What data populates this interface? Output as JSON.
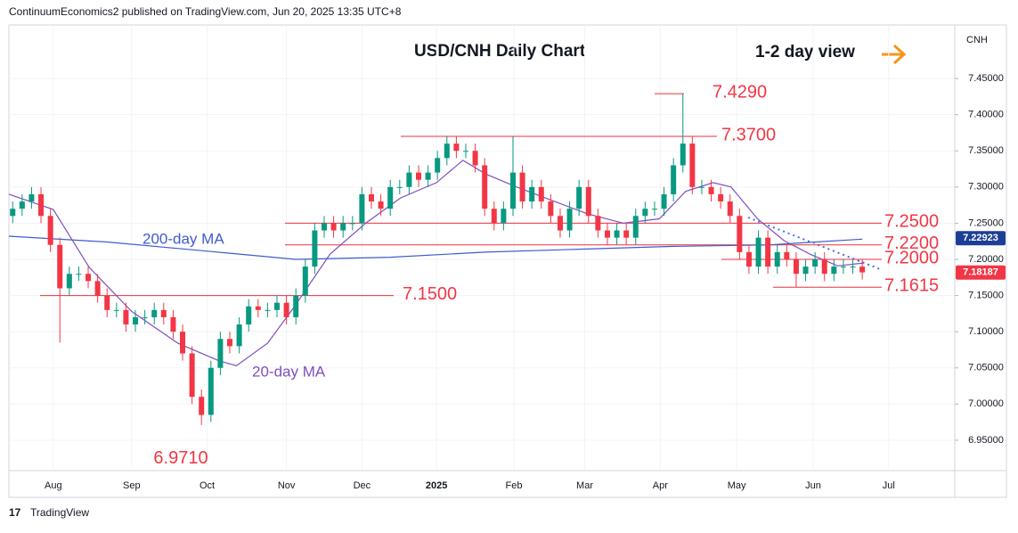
{
  "header": "ContinuumEconomics2 published on TradingView.com, Jun 20, 2025 13:35 UTC+8",
  "footer": "TradingView",
  "chart_data": {
    "type": "candlestick",
    "title": "USD/CNH Daily Chart",
    "subtitle": "1-2 day view",
    "currency": "CNH",
    "up_color": "#089981",
    "down_color": "#f23645",
    "open": [
      7.26,
      7.27,
      7.28,
      7.29,
      7.26,
      7.22,
      7.16,
      7.18,
      7.18,
      7.17,
      7.15,
      7.13,
      7.13,
      7.11,
      7.12,
      7.12,
      7.13,
      7.12,
      7.1,
      7.07,
      7.01,
      6.985,
      7.05,
      7.09,
      7.08,
      7.11,
      7.135,
      7.13,
      7.13,
      7.14,
      7.12,
      7.15,
      7.19,
      7.24,
      7.25,
      7.24,
      7.25,
      7.25,
      7.29,
      7.28,
      7.27,
      7.3,
      7.3,
      7.32,
      7.31,
      7.32,
      7.34,
      7.36,
      7.35,
      7.35,
      7.33,
      7.27,
      7.25,
      7.27,
      7.32,
      7.28,
      7.3,
      7.28,
      7.26,
      7.24,
      7.27,
      7.3,
      7.26,
      7.24,
      7.23,
      7.24,
      7.23,
      7.26,
      7.27,
      7.27,
      7.29,
      7.33,
      7.36,
      7.3,
      7.3,
      7.29,
      7.28,
      7.26,
      7.21,
      7.19,
      7.23,
      7.19,
      7.21,
      7.2,
      7.18,
      7.19,
      7.2,
      7.18,
      7.19,
      7.19,
      7.19
    ],
    "high": [
      7.28,
      7.29,
      7.3,
      7.3,
      7.27,
      7.23,
      7.19,
      7.19,
      7.19,
      7.18,
      7.16,
      7.14,
      7.14,
      7.13,
      7.13,
      7.14,
      7.14,
      7.13,
      7.11,
      7.08,
      7.02,
      7.06,
      7.1,
      7.1,
      7.12,
      7.145,
      7.145,
      7.14,
      7.15,
      7.15,
      7.16,
      7.2,
      7.25,
      7.26,
      7.26,
      7.26,
      7.26,
      7.3,
      7.3,
      7.29,
      7.31,
      7.31,
      7.33,
      7.33,
      7.33,
      7.35,
      7.37,
      7.37,
      7.36,
      7.36,
      7.34,
      7.28,
      7.28,
      7.37,
      7.33,
      7.31,
      7.31,
      7.29,
      7.27,
      7.28,
      7.31,
      7.31,
      7.27,
      7.25,
      7.25,
      7.25,
      7.27,
      7.28,
      7.28,
      7.3,
      7.34,
      7.429,
      7.37,
      7.31,
      7.31,
      7.3,
      7.29,
      7.27,
      7.22,
      7.24,
      7.24,
      7.22,
      7.22,
      7.21,
      7.2,
      7.21,
      7.21,
      7.2,
      7.2,
      7.2,
      7.2
    ],
    "low": [
      7.25,
      7.26,
      7.27,
      7.25,
      7.21,
      7.085,
      7.15,
      7.17,
      7.16,
      7.14,
      7.12,
      7.12,
      7.1,
      7.1,
      7.11,
      7.11,
      7.11,
      7.09,
      7.06,
      7.0,
      6.971,
      6.975,
      7.04,
      7.07,
      7.07,
      7.1,
      7.12,
      7.12,
      7.12,
      7.11,
      7.11,
      7.14,
      7.18,
      7.23,
      7.23,
      7.23,
      7.24,
      7.24,
      7.27,
      7.26,
      7.26,
      7.29,
      7.29,
      7.3,
      7.3,
      7.31,
      7.33,
      7.34,
      7.34,
      7.32,
      7.26,
      7.24,
      7.24,
      7.26,
      7.27,
      7.27,
      7.27,
      7.25,
      7.23,
      7.23,
      7.26,
      7.25,
      7.23,
      7.22,
      7.22,
      7.22,
      7.22,
      7.25,
      7.26,
      7.26,
      7.28,
      7.32,
      7.29,
      7.29,
      7.28,
      7.27,
      7.25,
      7.2,
      7.18,
      7.18,
      7.18,
      7.18,
      7.19,
      7.1615,
      7.17,
      7.18,
      7.17,
      7.17,
      7.18,
      7.18,
      7.172
    ],
    "close": [
      7.27,
      7.28,
      7.29,
      7.26,
      7.22,
      7.16,
      7.18,
      7.18,
      7.17,
      7.15,
      7.13,
      7.13,
      7.11,
      7.12,
      7.12,
      7.13,
      7.12,
      7.1,
      7.07,
      7.01,
      6.985,
      7.05,
      7.09,
      7.08,
      7.11,
      7.135,
      7.13,
      7.13,
      7.14,
      7.12,
      7.15,
      7.19,
      7.24,
      7.25,
      7.24,
      7.25,
      7.25,
      7.29,
      7.28,
      7.27,
      7.3,
      7.3,
      7.32,
      7.31,
      7.32,
      7.34,
      7.36,
      7.35,
      7.35,
      7.33,
      7.27,
      7.25,
      7.27,
      7.32,
      7.28,
      7.3,
      7.28,
      7.26,
      7.24,
      7.27,
      7.3,
      7.26,
      7.24,
      7.23,
      7.24,
      7.23,
      7.26,
      7.27,
      7.27,
      7.29,
      7.33,
      7.36,
      7.3,
      7.3,
      7.29,
      7.28,
      7.26,
      7.21,
      7.19,
      7.23,
      7.19,
      7.21,
      7.2,
      7.18,
      7.19,
      7.2,
      7.18,
      7.19,
      7.19,
      7.19,
      7.182
    ],
    "moving_averages": [
      {
        "name": "200-day MA",
        "color": "#3d5ccf",
        "x": [
          -0.4,
          10,
          20,
          30,
          40,
          50,
          60,
          70,
          80,
          90
        ],
        "values": [
          7.232,
          7.224,
          7.212,
          7.2,
          7.203,
          7.21,
          7.214,
          7.218,
          7.22,
          7.228
        ]
      },
      {
        "name": "20-day MA",
        "color": "#7e4fc0",
        "x": [
          -0.4,
          4.3,
          8.1,
          12.6,
          17.5,
          21.8,
          23.7,
          27,
          29.8,
          33.6,
          37.4,
          41.1,
          44.9,
          47.7,
          50.1,
          53.4,
          57.2,
          60.9,
          64.7,
          68.5,
          71.3,
          74.2,
          76.1,
          78.9,
          81.7,
          84.5,
          87.4,
          90.2
        ],
        "values": [
          7.29,
          7.269,
          7.189,
          7.128,
          7.084,
          7.06,
          7.053,
          7.084,
          7.134,
          7.207,
          7.25,
          7.285,
          7.306,
          7.337,
          7.318,
          7.3,
          7.281,
          7.263,
          7.25,
          7.256,
          7.294,
          7.306,
          7.3,
          7.256,
          7.226,
          7.207,
          7.191,
          7.195
        ]
      }
    ],
    "levels": [
      {
        "value": 7.429,
        "label": "7.4290"
      },
      {
        "value": 7.37,
        "label": "7.3700"
      },
      {
        "value": 7.25,
        "label": "7.2500"
      },
      {
        "value": 7.22,
        "label": "7.2200"
      },
      {
        "value": 7.2,
        "label": "7.2000"
      },
      {
        "value": 7.1615,
        "label": "7.1615"
      },
      {
        "value": 7.15,
        "label": "7.1500"
      },
      {
        "value": 6.971,
        "label": "6.9710"
      }
    ],
    "price_tags": [
      {
        "value": 7.22923,
        "label": "7.22923",
        "color": "#1c3f95"
      },
      {
        "value": 7.18187,
        "label": "7.18187",
        "color": "#f23645"
      }
    ],
    "xlim": [
      -0.4,
      99.8
    ],
    "xticks": [
      {
        "value": 4.3,
        "label": "Aug"
      },
      {
        "value": 12.6,
        "label": "Sep"
      },
      {
        "value": 20.6,
        "label": "Oct"
      },
      {
        "value": 29,
        "label": "Nov"
      },
      {
        "value": 37,
        "label": "Dec"
      },
      {
        "value": 44.9,
        "label": "2025"
      },
      {
        "value": 53.1,
        "label": "Feb"
      },
      {
        "value": 60.6,
        "label": "Mar"
      },
      {
        "value": 68.6,
        "label": "Apr"
      },
      {
        "value": 76.7,
        "label": "May"
      },
      {
        "value": 84.8,
        "label": "Jun"
      },
      {
        "value": 92.8,
        "label": "Jul"
      }
    ],
    "ylim": [
      6.908,
      7.524
    ],
    "yticks": [
      {
        "value": 7.45,
        "label": "7.45000"
      },
      {
        "value": 7.4,
        "label": "7.40000"
      },
      {
        "value": 7.35,
        "label": "7.35000"
      },
      {
        "value": 7.3,
        "label": "7.30000"
      },
      {
        "value": 7.25,
        "label": "7.25000"
      },
      {
        "value": 7.2,
        "label": "7.20000"
      },
      {
        "value": 7.15,
        "label": "7.15000"
      },
      {
        "value": 7.1,
        "label": "7.10000"
      },
      {
        "value": 7.05,
        "label": "7.05000"
      },
      {
        "value": 7,
        "label": "7.00000"
      },
      {
        "value": 6.95,
        "label": "6.95000"
      }
    ]
  }
}
